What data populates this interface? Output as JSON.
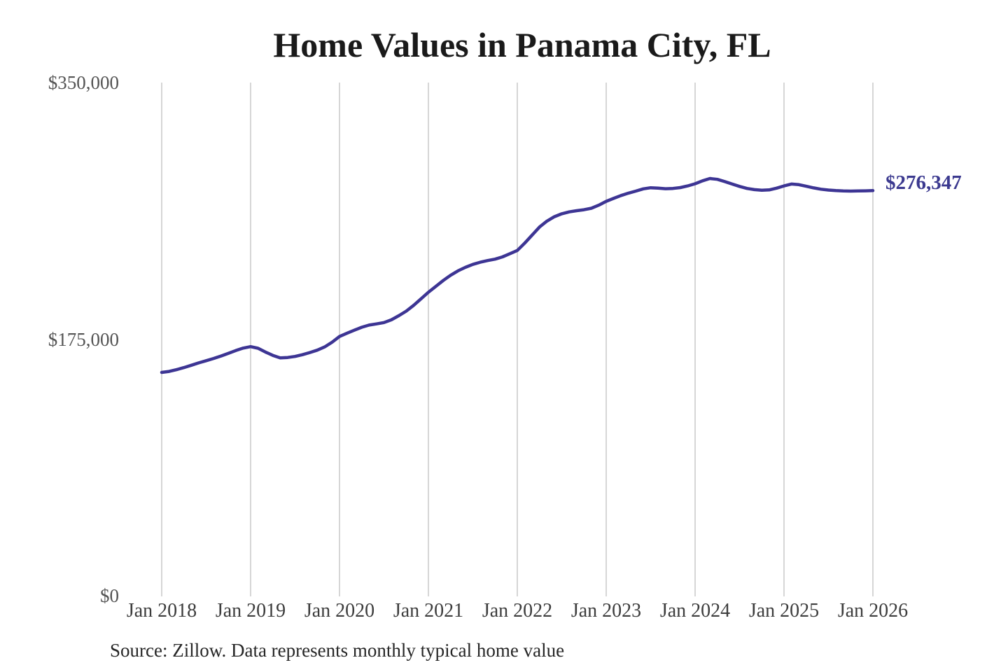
{
  "title": "Home Values in Panama City, FL",
  "end_label": "$276,347",
  "source_note": "Source: Zillow. Data represents monthly typical home value",
  "colors": {
    "background": "#ffffff",
    "title": "#1a1a1a",
    "line": "#3d3594",
    "end_label": "#3b398f",
    "grid": "#c9c9c9",
    "y_label": "#545454",
    "x_label": "#3d3d3d",
    "source": "#262626"
  },
  "chart_data": {
    "type": "line",
    "title": "Home Values in Panama City, FL",
    "xlabel": "",
    "ylabel": "",
    "ylim": [
      0,
      350000
    ],
    "grid": "vertical",
    "legend": "none",
    "frequency": "monthly",
    "x_start": "Jan 2018",
    "x_end": "Jan 2026",
    "x_tick_labels": [
      "Jan 2018",
      "Jan 2019",
      "Jan 2020",
      "Jan 2021",
      "Jan 2022",
      "Jan 2023",
      "Jan 2024",
      "Jan 2025",
      "Jan 2026"
    ],
    "y_tick_labels": [
      "$0",
      "$175,000",
      "$350,000"
    ],
    "end_value": 276347,
    "series": [
      {
        "name": "Typical home value (USD)",
        "values": [
          152300,
          153000,
          154200,
          155600,
          157200,
          158800,
          160300,
          161800,
          163500,
          165300,
          167200,
          168900,
          169900,
          168800,
          166200,
          163900,
          162200,
          162500,
          163200,
          164400,
          165900,
          167500,
          169700,
          172900,
          176800,
          179000,
          181100,
          183100,
          184600,
          185400,
          186300,
          188200,
          191000,
          194100,
          198000,
          202500,
          207000,
          211000,
          215000,
          218600,
          221600,
          224000,
          226000,
          227500,
          228600,
          229600,
          231100,
          233300,
          235500,
          240500,
          246000,
          251500,
          255500,
          258500,
          260500,
          261800,
          262600,
          263300,
          264300,
          266400,
          269000,
          271000,
          273000,
          274600,
          276000,
          277500,
          278300,
          278000,
          277600,
          277800,
          278400,
          279500,
          281000,
          283000,
          284600,
          284000,
          282500,
          280800,
          279200,
          277800,
          277000,
          276600,
          276800,
          278000,
          279500,
          280800,
          280400,
          279300,
          278200,
          277300,
          276700,
          276300,
          276100,
          276000,
          276100,
          276200,
          276347
        ]
      }
    ]
  }
}
